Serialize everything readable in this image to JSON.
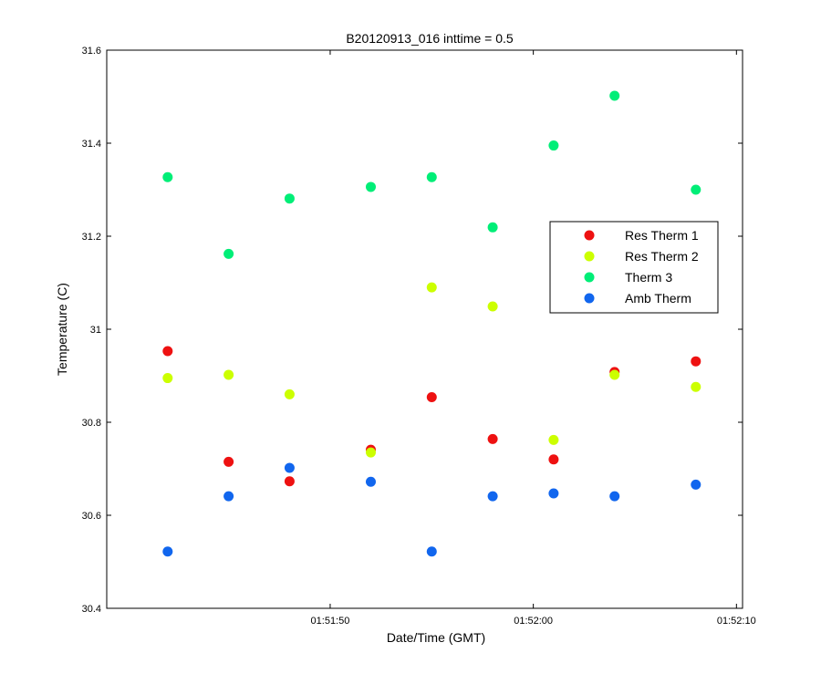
{
  "chart_data": {
    "type": "scatter",
    "title": "B20120913_016 inttime = 0.5",
    "xlabel": "Date/Time (GMT)",
    "ylabel": "Temperature (C)",
    "xlim": [
      "01:51:40",
      "01:52:10"
    ],
    "ylim": [
      30.4,
      31.6
    ],
    "x_ticks": [
      "01:51:50",
      "01:52:00",
      "01:52:10"
    ],
    "y_ticks": [
      "30.4",
      "30.6",
      "30.8",
      "31",
      "31.2",
      "31.4",
      "31.6"
    ],
    "grid": false,
    "legend_position": "right",
    "x": [
      "01:51:42",
      "01:51:45",
      "01:51:48",
      "01:51:52",
      "01:51:55",
      "01:51:58",
      "01:52:01",
      "01:52:04",
      "01:52:08"
    ],
    "series": [
      {
        "name": "Res Therm 1",
        "color": "#ee1111",
        "values": [
          30.953,
          30.715,
          30.673,
          30.741,
          30.854,
          30.764,
          30.72,
          30.908,
          30.931
        ]
      },
      {
        "name": "Res Therm 2",
        "color": "#ccff00",
        "values": [
          30.895,
          30.902,
          30.86,
          30.735,
          31.09,
          31.049,
          30.762,
          30.902,
          30.876
        ]
      },
      {
        "name": "Therm 3",
        "color": "#00ee77",
        "values": [
          31.327,
          31.162,
          31.281,
          31.306,
          31.327,
          31.219,
          31.395,
          31.502,
          31.3
        ]
      },
      {
        "name": "Amb Therm",
        "color": "#1166ee",
        "values": [
          30.522,
          30.641,
          30.702,
          30.672,
          30.522,
          30.641,
          30.647,
          30.641,
          30.666
        ]
      }
    ]
  }
}
